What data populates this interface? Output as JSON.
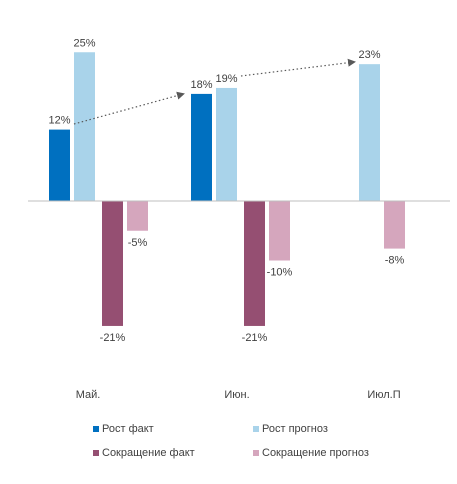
{
  "chart_data": {
    "type": "bar",
    "categories": [
      "Май.",
      "Июн.",
      "Июл.П"
    ],
    "series": [
      {
        "name": "Рост факт",
        "values": [
          12,
          18,
          null
        ],
        "labels": [
          "12%",
          "18%",
          ""
        ],
        "color": "#0070C0"
      },
      {
        "name": "Рост прогноз",
        "values": [
          25,
          19,
          23
        ],
        "labels": [
          "25%",
          "19%",
          "23%"
        ],
        "color": "#A9D3EA"
      },
      {
        "name": "Сокращение факт",
        "values": [
          -21,
          -21,
          null
        ],
        "labels": [
          "-21%",
          "-21%",
          ""
        ],
        "color": "#954F72"
      },
      {
        "name": "Сокращение прогноз",
        "values": [
          -5,
          -10,
          -8
        ],
        "labels": [
          "-5%",
          "-10%",
          "-8%"
        ],
        "color": "#D5A6BD"
      }
    ],
    "ylim": [
      -30,
      30
    ],
    "grid": false,
    "legend_position": "bottom",
    "trend_arrows": [
      {
        "from": {
          "category": 0,
          "value": 12
        },
        "to": {
          "category": 1,
          "value": 18
        }
      },
      {
        "from": {
          "category": 1,
          "value": 19
        },
        "to": {
          "category": 2,
          "value": 23
        }
      }
    ]
  },
  "legend": [
    {
      "label": "Рост факт",
      "color": "#0070C0"
    },
    {
      "label": "Рост прогноз",
      "color": "#A9D3EA"
    },
    {
      "label": "Сокращение факт",
      "color": "#954F72"
    },
    {
      "label": "Сокращение прогноз",
      "color": "#D5A6BD"
    }
  ]
}
